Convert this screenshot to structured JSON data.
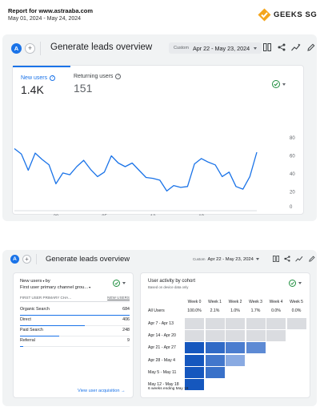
{
  "report": {
    "title": "Report for www.astraaba.com",
    "range": "May 01, 2024 - May 24, 2024"
  },
  "brand": {
    "name": "GEEKS SG",
    "accent": "#f4a51c"
  },
  "colors": {
    "primary": "#1a73e8",
    "success": "#1e8e3e"
  },
  "panel1": {
    "avatar": "A",
    "title": "Generate leads overview",
    "date_label": "Custom",
    "date_value": "Apr 22 - May 23, 2024",
    "icons": [
      "compare-icon",
      "share-icon",
      "insights-icon",
      "edit-icon"
    ],
    "metrics": [
      {
        "label": "New users",
        "value": "1.4K"
      },
      {
        "label": "Returning users",
        "value": "151"
      }
    ]
  },
  "chart_data": {
    "type": "line",
    "series": [
      {
        "values": [
          68,
          62,
          44,
          63,
          56,
          50,
          29,
          41,
          39,
          48,
          55,
          45,
          37,
          42,
          60,
          52,
          48,
          52,
          44,
          36,
          35,
          33,
          21,
          27,
          25,
          26,
          51,
          57,
          53,
          50,
          37,
          42,
          26,
          23,
          37,
          64
        ]
      }
    ],
    "x_ticks": [
      {
        "index": 6,
        "label": "28",
        "sublabel": "Apr"
      },
      {
        "index": 13,
        "label": "05",
        "sublabel": "May"
      },
      {
        "index": 20,
        "label": "12",
        "sublabel": ""
      },
      {
        "index": 27,
        "label": "19",
        "sublabel": ""
      }
    ],
    "y_ticks": [
      "80",
      "60",
      "40",
      "20",
      "0"
    ],
    "ylim": [
      0,
      80
    ],
    "grid": false
  },
  "panel2": {
    "avatar": "A",
    "title": "Generate leads overview",
    "date_label": "Custom",
    "date_value": "Apr 22 - May 23, 2024",
    "acquisition": {
      "metric": "New users",
      "by": "by",
      "dimension": "First user primary channel grou...",
      "col_dim": "FIRST USER PRIMARY CHA...",
      "col_val": "NEW USERS",
      "rows": [
        {
          "name": "Organic Search",
          "value": "684",
          "share": 1.0
        },
        {
          "name": "Direct",
          "value": "406",
          "share": 0.59
        },
        {
          "name": "Paid Search",
          "value": "248",
          "share": 0.36
        },
        {
          "name": "Referral",
          "value": "9",
          "share": 0.03
        }
      ],
      "link": "View user acquisition"
    },
    "cohort": {
      "title": "User activity by cohort",
      "subtitle": "Based on device data only",
      "weeks": [
        "Week 0",
        "Week 1",
        "Week 2",
        "Week 3",
        "Week 4",
        "Week 5"
      ],
      "all_label": "All Users",
      "all_values": [
        "100.0%",
        "2.1%",
        "1.0%",
        "1.7%",
        "0.0%",
        "0.0%"
      ],
      "rows": [
        {
          "label": "Apr 7 - Apr 13",
          "levels": [
            0.05,
            0.05,
            0.05,
            0.05,
            0.05,
            0.05
          ]
        },
        {
          "label": "Apr 14 - Apr 20",
          "levels": [
            0.05,
            0.05,
            0.05,
            0.05,
            0.05
          ]
        },
        {
          "label": "Apr 21 - Apr 27",
          "levels": [
            1.0,
            0.85,
            0.7,
            0.6
          ]
        },
        {
          "label": "Apr 28 - May 4",
          "levels": [
            1.0,
            0.75,
            0.35
          ]
        },
        {
          "label": "May 5 - May 11",
          "levels": [
            1.0,
            0.8
          ]
        },
        {
          "label": "May 12 - May 18",
          "levels": [
            1.0
          ]
        }
      ],
      "footer": "6 weeks ending May 18"
    }
  }
}
